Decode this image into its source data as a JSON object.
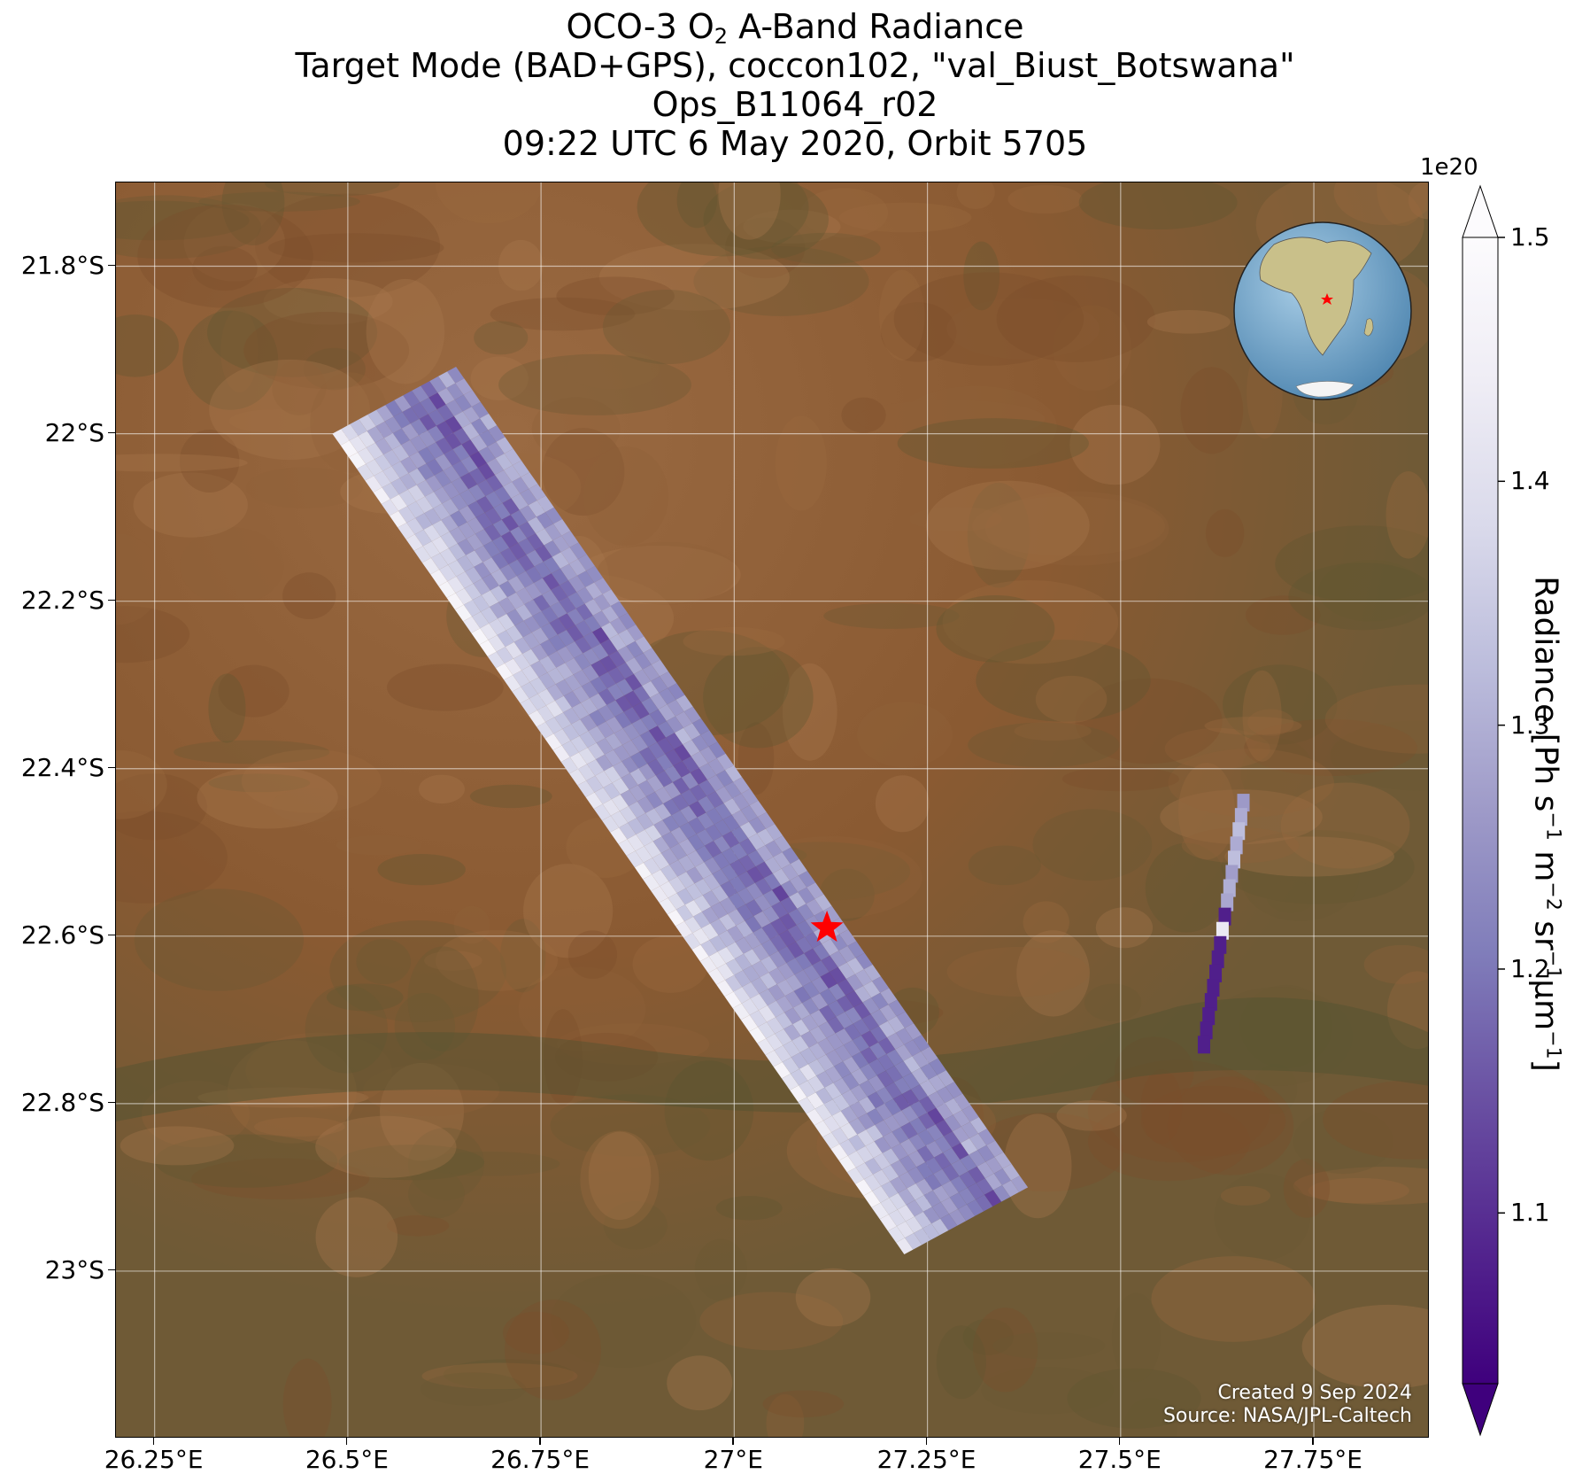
{
  "title": {
    "line1_pre": "OCO-3 O",
    "line1_sub": "2",
    "line1_post": " A-Band Radiance",
    "line2": "Target Mode (BAD+GPS), coccon102, \"val_Biust_Botswana\"",
    "line3": "Ops_B11064_r02",
    "line4": "09:22 UTC 6 May 2020, Orbit 5705"
  },
  "map": {
    "lon_range": [
      26.2,
      27.9
    ],
    "lat_range": [
      -23.2,
      -21.7
    ],
    "lat_ticks": [
      {
        "value": -21.8,
        "label": "21.8°S"
      },
      {
        "value": -22.0,
        "label": "22°S"
      },
      {
        "value": -22.2,
        "label": "22.2°S"
      },
      {
        "value": -22.4,
        "label": "22.4°S"
      },
      {
        "value": -22.6,
        "label": "22.6°S"
      },
      {
        "value": -22.8,
        "label": "22.8°S"
      },
      {
        "value": -23.0,
        "label": "23°S"
      }
    ],
    "lon_ticks": [
      {
        "value": 26.25,
        "label": "26.25°E"
      },
      {
        "value": 26.5,
        "label": "26.5°E"
      },
      {
        "value": 26.75,
        "label": "26.75°E"
      },
      {
        "value": 27.0,
        "label": "27°E"
      },
      {
        "value": 27.25,
        "label": "27.25°E"
      },
      {
        "value": 27.5,
        "label": "27.5°E"
      },
      {
        "value": 27.75,
        "label": "27.75°E"
      }
    ],
    "gridlines": true,
    "target": {
      "name": "val_Biust_Botswana",
      "lon": 27.12,
      "lat": -22.59,
      "marker": "red-star"
    },
    "basemap_colors": {
      "land": "#8a5a32",
      "land_dark": "#5f5a32",
      "land_light": "#a87a52"
    }
  },
  "credits": {
    "line1": "Created 9 Sep 2024",
    "line2": "Source: NASA/JPL-Caltech"
  },
  "colorbar": {
    "min": 1.03,
    "max": 1.5,
    "exponent_label": "1e20",
    "ticks": [
      {
        "value": 1.1,
        "label": "1.1"
      },
      {
        "value": 1.2,
        "label": "1.2"
      },
      {
        "value": 1.3,
        "label": "1.3"
      },
      {
        "value": 1.4,
        "label": "1.4"
      },
      {
        "value": 1.5,
        "label": "1.5"
      }
    ],
    "label_pre": "Radiance [Ph s",
    "label_parts": [
      "−1",
      " m",
      "−2",
      " sr",
      "−1",
      "μm",
      "−1"
    ],
    "label_post": "]",
    "colormap": [
      "#3f007d",
      "#54278f",
      "#6a51a3",
      "#807dba",
      "#9e9ac8",
      "#bcbddc",
      "#dadaeb",
      "#efedf5",
      "#fcfbfd"
    ],
    "extend": "both"
  },
  "inset": {
    "name": "globe-locator",
    "ocean": "#7fb3d5",
    "land": "#c9c08a",
    "marker": "red-star"
  }
}
